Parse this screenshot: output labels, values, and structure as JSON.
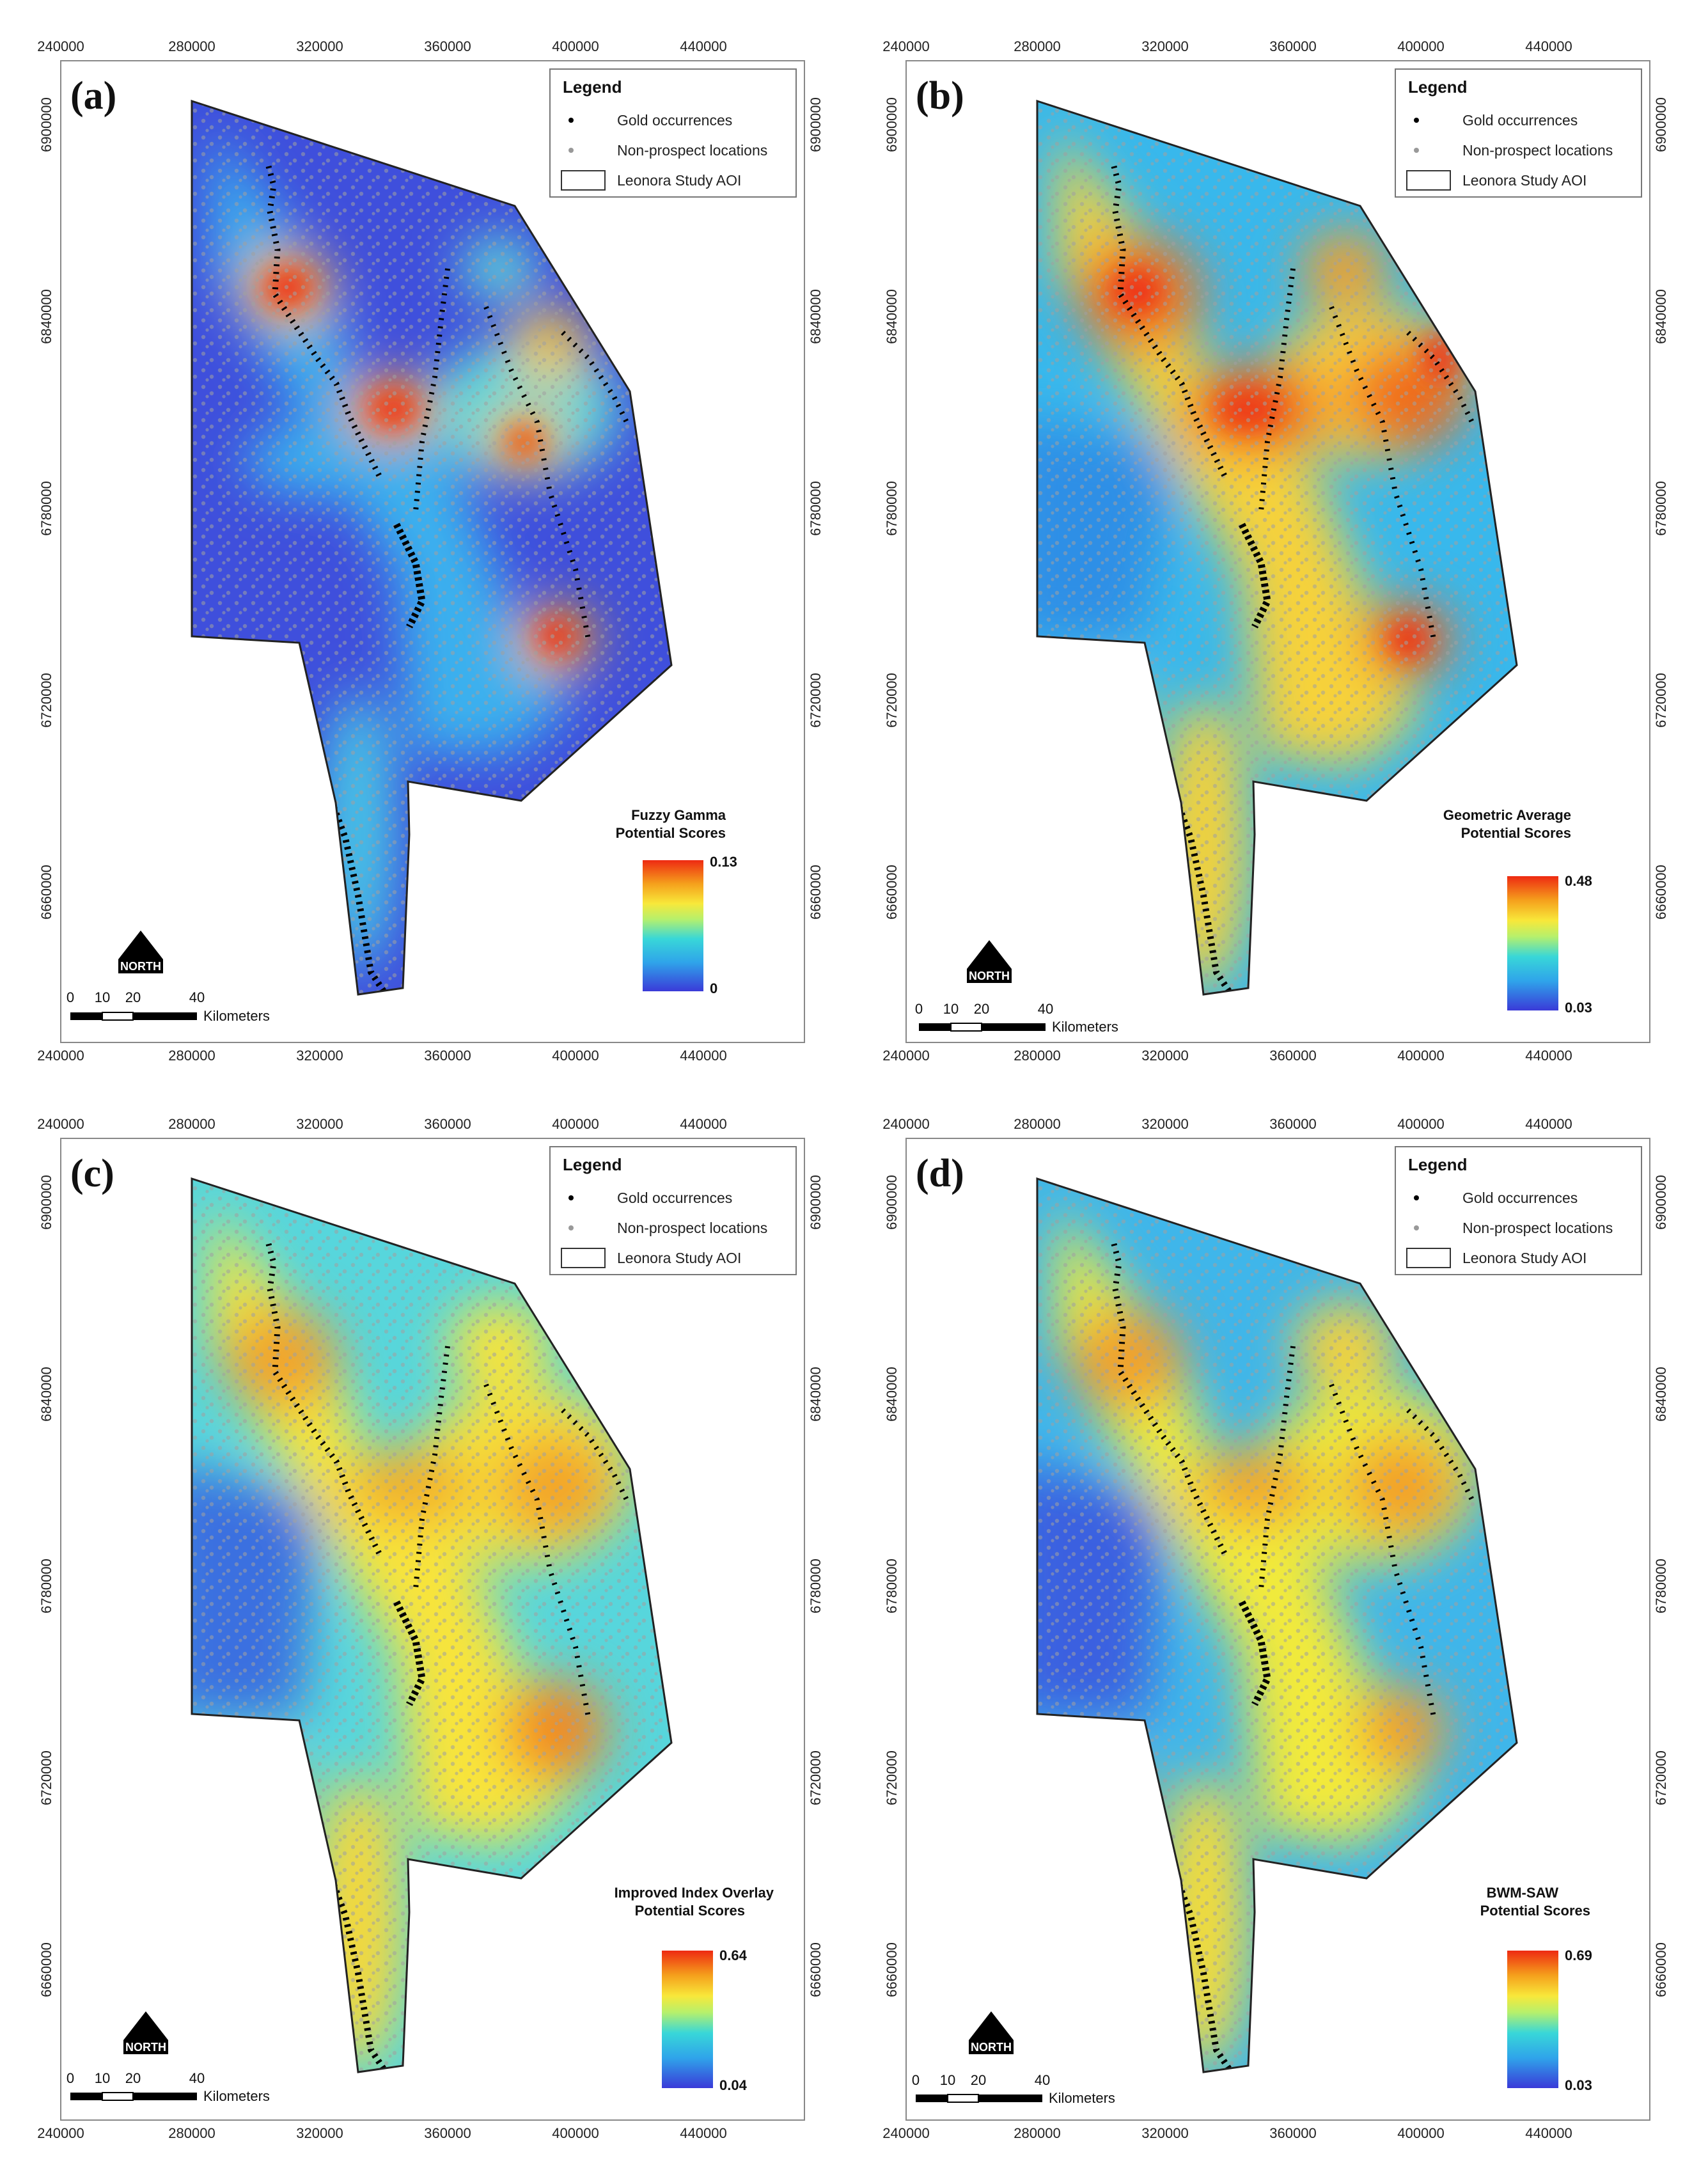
{
  "figure": {
    "panels": [
      {
        "letter": "(a)",
        "scale_title_1": "Fuzzy Gamma",
        "scale_title_2": "Potential Scores",
        "max": "0.13",
        "min": "0"
      },
      {
        "letter": "(b)",
        "scale_title_1": "Geometric Average",
        "scale_title_2": "Potential Scores",
        "max": "0.48",
        "min": "0.03"
      },
      {
        "letter": "(c)",
        "scale_title_1": "Improved Index Overlay",
        "scale_title_2": "Potential Scores",
        "max": "0.64",
        "min": "0.04"
      },
      {
        "letter": "(d)",
        "scale_title_1": "BWM-SAW",
        "scale_title_2": "Potential Scores",
        "max": "0.69",
        "min": "0.03"
      }
    ],
    "legend": {
      "title": "Legend",
      "gold": "Gold occurrences",
      "nonprospect": "Non-prospect locations",
      "aoi": "Leonora Study AOI"
    },
    "x_ticks": [
      "240000",
      "280000",
      "320000",
      "360000",
      "400000",
      "440000"
    ],
    "y_ticks": [
      "6900000",
      "6840000",
      "6780000",
      "6720000",
      "6660000"
    ],
    "scalebar": {
      "labels": [
        "0",
        "10",
        "20",
        "40"
      ],
      "unit": "Kilometers"
    },
    "north_label": "NORTH",
    "colors": {
      "low": "#3a3bd6",
      "mid_low": "#2fc6e6",
      "mid": "#b8f06a",
      "mid_high": "#f8d21c",
      "high": "#ef2c12",
      "gold_points": "#000000",
      "nonprospect_points": "#9a9a9a"
    }
  }
}
